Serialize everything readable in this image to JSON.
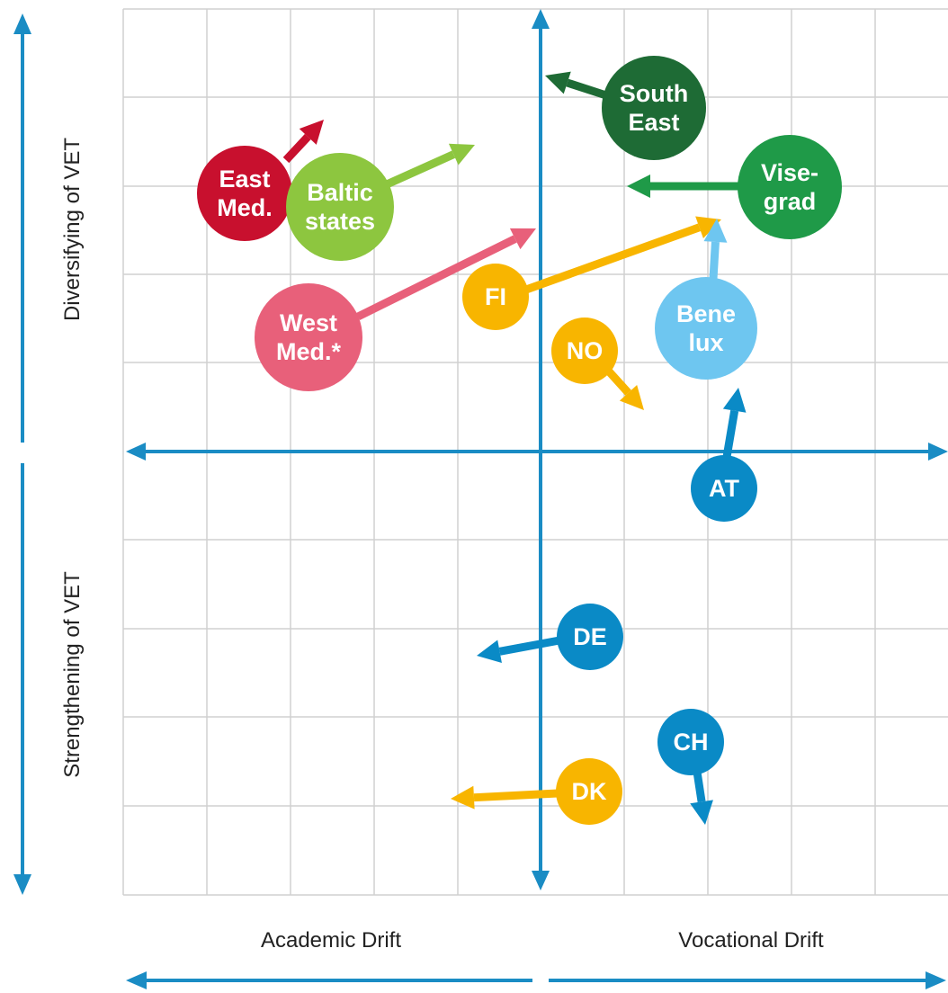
{
  "axes": {
    "y_top": "Diversifying of VET",
    "y_bottom": "Strengthening of VET",
    "x_left": "Academic Drift",
    "x_right": "Vocational Drift"
  },
  "nodes": [
    {
      "label": [
        "South",
        "East"
      ]
    },
    {
      "label": [
        "Vise-",
        "grad"
      ]
    },
    {
      "label": [
        "East",
        "Med."
      ]
    },
    {
      "label": [
        "Baltic",
        "states"
      ]
    },
    {
      "label": [
        "West",
        "Med.*"
      ]
    },
    {
      "label": [
        "FI"
      ]
    },
    {
      "label": [
        "NO"
      ]
    },
    {
      "label": [
        "Bene",
        "lux"
      ]
    },
    {
      "label": [
        "AT"
      ]
    },
    {
      "label": [
        "DE"
      ]
    },
    {
      "label": [
        "CH"
      ]
    },
    {
      "label": [
        "DK"
      ]
    }
  ]
}
